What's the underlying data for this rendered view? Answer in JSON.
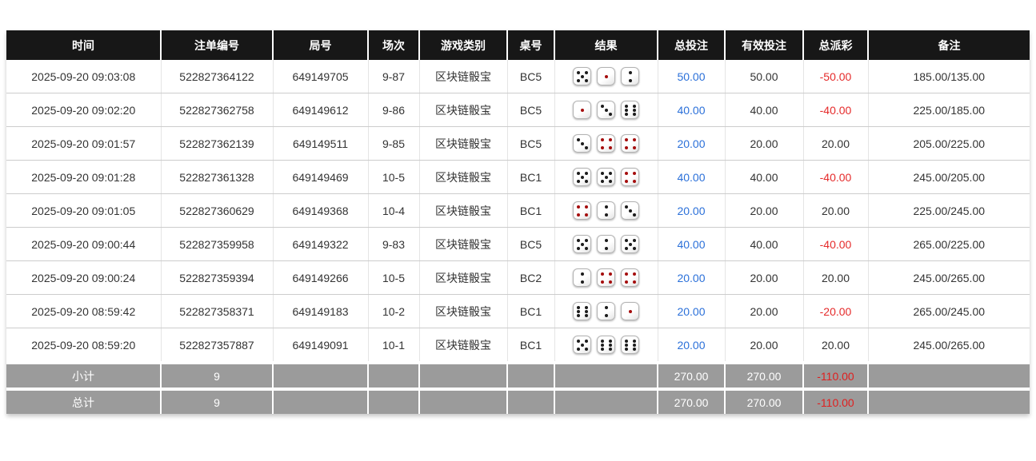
{
  "colors": {
    "header_bg": "#171717",
    "footer_bg": "#9b9b9b",
    "accent_blue": "#2b70d9",
    "negative_red": "#e52b2b",
    "dice_red_pip": "#a50d0d",
    "dice_black_pip": "#1c1c1c"
  },
  "table": {
    "headers": [
      {
        "key": "time",
        "label": "时间"
      },
      {
        "key": "bet-id",
        "label": "注单编号"
      },
      {
        "key": "round-id",
        "label": "局号"
      },
      {
        "key": "session",
        "label": "场次"
      },
      {
        "key": "game-type",
        "label": "游戏类别"
      },
      {
        "key": "table-no",
        "label": "桌号"
      },
      {
        "key": "result",
        "label": "结果"
      },
      {
        "key": "total-bet",
        "label": "总投注"
      },
      {
        "key": "valid-bet",
        "label": "有效投注"
      },
      {
        "key": "payout",
        "label": "总派彩"
      },
      {
        "key": "remark",
        "label": "备注"
      }
    ],
    "rows": [
      {
        "time": "2025-09-20 09:03:08",
        "bet_id": "522827364122",
        "round_id": "649149705",
        "session": "9-87",
        "game_type": "区块链骰宝",
        "table_no": "BC5",
        "dice": [
          5,
          1,
          2
        ],
        "total_bet": "50.00",
        "valid_bet": "50.00",
        "payout": "-50.00",
        "remark": "185.00/135.00"
      },
      {
        "time": "2025-09-20 09:02:20",
        "bet_id": "522827362758",
        "round_id": "649149612",
        "session": "9-86",
        "game_type": "区块链骰宝",
        "table_no": "BC5",
        "dice": [
          1,
          3,
          6
        ],
        "total_bet": "40.00",
        "valid_bet": "40.00",
        "payout": "-40.00",
        "remark": "225.00/185.00"
      },
      {
        "time": "2025-09-20 09:01:57",
        "bet_id": "522827362139",
        "round_id": "649149511",
        "session": "9-85",
        "game_type": "区块链骰宝",
        "table_no": "BC5",
        "dice": [
          3,
          4,
          4
        ],
        "total_bet": "20.00",
        "valid_bet": "20.00",
        "payout": "20.00",
        "remark": "205.00/225.00"
      },
      {
        "time": "2025-09-20 09:01:28",
        "bet_id": "522827361328",
        "round_id": "649149469",
        "session": "10-5",
        "game_type": "区块链骰宝",
        "table_no": "BC1",
        "dice": [
          5,
          5,
          4
        ],
        "total_bet": "40.00",
        "valid_bet": "40.00",
        "payout": "-40.00",
        "remark": "245.00/205.00"
      },
      {
        "time": "2025-09-20 09:01:05",
        "bet_id": "522827360629",
        "round_id": "649149368",
        "session": "10-4",
        "game_type": "区块链骰宝",
        "table_no": "BC1",
        "dice": [
          4,
          2,
          3
        ],
        "total_bet": "20.00",
        "valid_bet": "20.00",
        "payout": "20.00",
        "remark": "225.00/245.00"
      },
      {
        "time": "2025-09-20 09:00:44",
        "bet_id": "522827359958",
        "round_id": "649149322",
        "session": "9-83",
        "game_type": "区块链骰宝",
        "table_no": "BC5",
        "dice": [
          5,
          2,
          5
        ],
        "total_bet": "40.00",
        "valid_bet": "40.00",
        "payout": "-40.00",
        "remark": "265.00/225.00"
      },
      {
        "time": "2025-09-20 09:00:24",
        "bet_id": "522827359394",
        "round_id": "649149266",
        "session": "10-5",
        "game_type": "区块链骰宝",
        "table_no": "BC2",
        "dice": [
          2,
          4,
          4
        ],
        "total_bet": "20.00",
        "valid_bet": "20.00",
        "payout": "20.00",
        "remark": "245.00/265.00"
      },
      {
        "time": "2025-09-20 08:59:42",
        "bet_id": "522827358371",
        "round_id": "649149183",
        "session": "10-2",
        "game_type": "区块链骰宝",
        "table_no": "BC1",
        "dice": [
          6,
          2,
          1
        ],
        "total_bet": "20.00",
        "valid_bet": "20.00",
        "payout": "-20.00",
        "remark": "265.00/245.00"
      },
      {
        "time": "2025-09-20 08:59:20",
        "bet_id": "522827357887",
        "round_id": "649149091",
        "session": "10-1",
        "game_type": "区块链骰宝",
        "table_no": "BC1",
        "dice": [
          5,
          6,
          6
        ],
        "total_bet": "20.00",
        "valid_bet": "20.00",
        "payout": "20.00",
        "remark": "245.00/265.00"
      }
    ],
    "footer": [
      {
        "label": "小计",
        "count": "9",
        "total_bet": "270.00",
        "valid_bet": "270.00",
        "payout": "-110.00"
      },
      {
        "label": "总计",
        "count": "9",
        "total_bet": "270.00",
        "valid_bet": "270.00",
        "payout": "-110.00"
      }
    ]
  }
}
